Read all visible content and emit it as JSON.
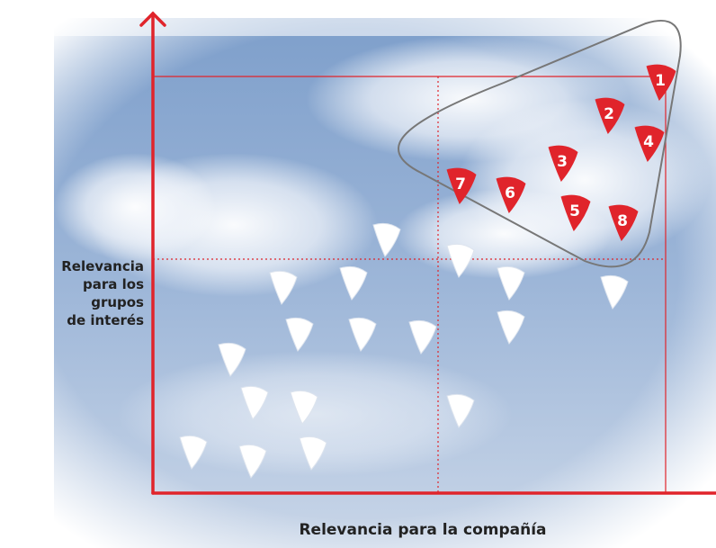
{
  "y_axis_label": {
    "lines": [
      "Relevancia",
      "para los",
      "grupos",
      "de interés"
    ]
  },
  "x_axis_label": "Relevancia para la compañía",
  "highlighted": [
    "1",
    "2",
    "3",
    "4",
    "5",
    "6",
    "7",
    "8"
  ]
}
